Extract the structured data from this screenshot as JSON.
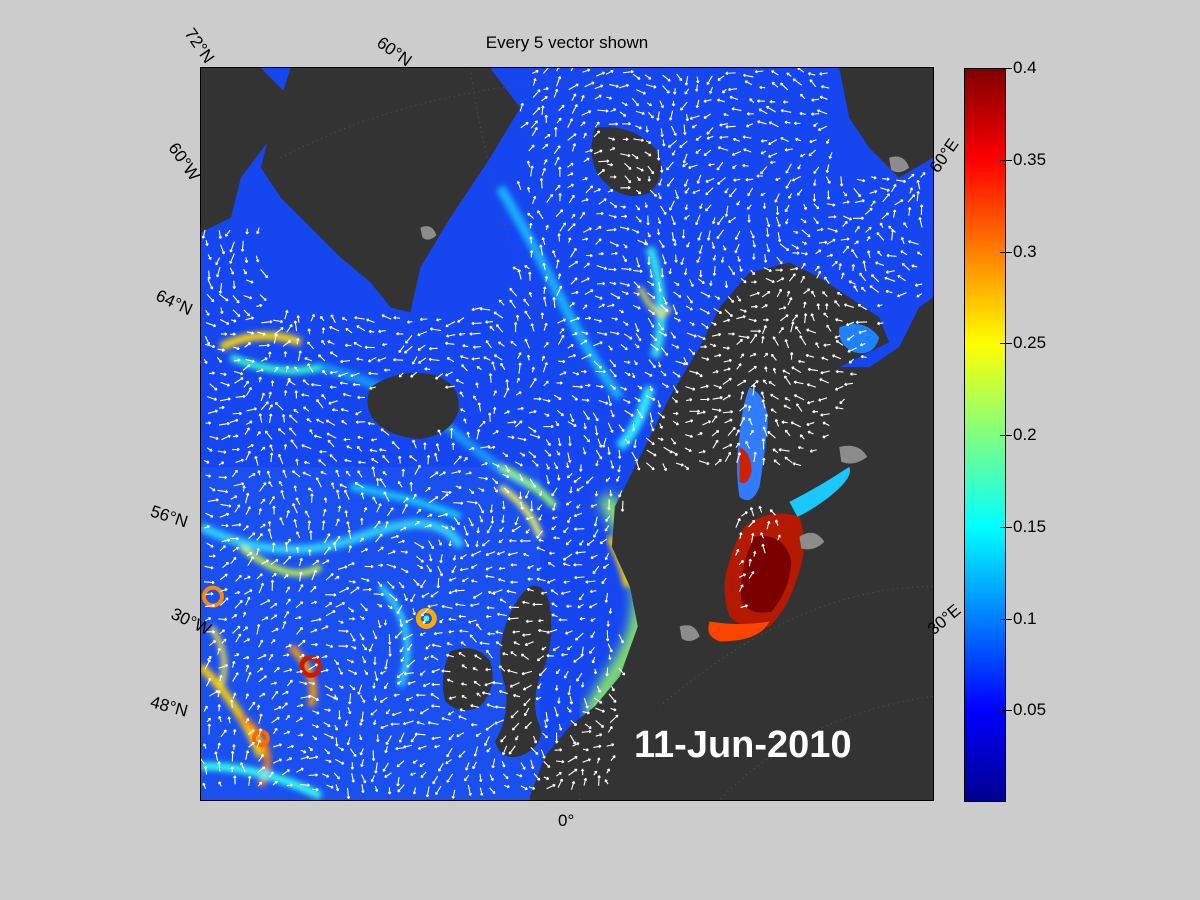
{
  "title": "Every 5 vector shown",
  "date_stamp": "11-Jun-2010",
  "graticule_labels": {
    "lat_72": "72°N",
    "lat_68": "60°N",
    "lon_60w": "60°W",
    "lat_64": "64°N",
    "lat_56": "56°N",
    "lon_30w": "30°W",
    "lat_48": "48°N",
    "lon_0": "0°",
    "lon_60e": "60°E",
    "lon_30e": "30°E"
  },
  "colorbar": {
    "min": 0,
    "max": 0.4,
    "ticks": [
      "0.4",
      "0.35",
      "0.3",
      "0.25",
      "0.2",
      "0.15",
      "0.1",
      "0.05"
    ],
    "tick_values": [
      0.4,
      0.35,
      0.3,
      0.25,
      0.2,
      0.15,
      0.1,
      0.05
    ],
    "colormap": "jet"
  },
  "colors": {
    "background": "#cccccc",
    "ocean_base": "#1646f0",
    "land": "#333333",
    "ice": "#8c8c8c",
    "vectors": "#ffffff"
  }
}
